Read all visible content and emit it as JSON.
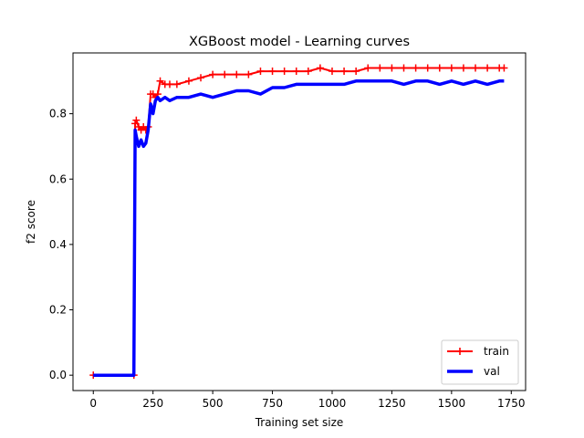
{
  "chart_data": {
    "type": "line",
    "title": "XGBoost model - Learning curves",
    "xlabel": "Training set size",
    "ylabel": "f2 score",
    "xlim": [
      -85,
      1810
    ],
    "ylim": [
      -0.047,
      0.986
    ],
    "xticks": [
      0,
      250,
      500,
      750,
      1000,
      1250,
      1500,
      1750
    ],
    "yticks": [
      0.0,
      0.2,
      0.4,
      0.6,
      0.8
    ],
    "xtick_labels": [
      "0",
      "250",
      "500",
      "750",
      "1000",
      "1250",
      "1500",
      "1750"
    ],
    "ytick_labels": [
      "0.0",
      "0.2",
      "0.4",
      "0.6",
      "0.8"
    ],
    "grid": false,
    "legend_position": "lower-right",
    "series": [
      {
        "name": "train",
        "color": "#ff0000",
        "marker": "+",
        "x": [
          0,
          170,
          175,
          180,
          190,
          200,
          210,
          220,
          230,
          240,
          250,
          260,
          270,
          280,
          300,
          320,
          350,
          400,
          450,
          500,
          550,
          600,
          650,
          700,
          750,
          800,
          850,
          900,
          950,
          1000,
          1050,
          1100,
          1150,
          1200,
          1250,
          1300,
          1350,
          1400,
          1450,
          1500,
          1550,
          1600,
          1650,
          1700,
          1720
        ],
        "y": [
          0.0,
          0.0,
          0.77,
          0.78,
          0.76,
          0.75,
          0.76,
          0.75,
          0.76,
          0.86,
          0.86,
          0.85,
          0.86,
          0.9,
          0.89,
          0.89,
          0.89,
          0.9,
          0.91,
          0.92,
          0.92,
          0.92,
          0.92,
          0.93,
          0.93,
          0.93,
          0.93,
          0.93,
          0.94,
          0.93,
          0.93,
          0.93,
          0.94,
          0.94,
          0.94,
          0.94,
          0.94,
          0.94,
          0.94,
          0.94,
          0.94,
          0.94,
          0.94,
          0.94,
          0.94
        ]
      },
      {
        "name": "val",
        "color": "#0000ff",
        "marker": "",
        "x": [
          0,
          170,
          175,
          180,
          190,
          200,
          210,
          220,
          230,
          240,
          250,
          260,
          270,
          280,
          300,
          320,
          350,
          400,
          450,
          500,
          550,
          600,
          650,
          700,
          750,
          800,
          850,
          900,
          950,
          1000,
          1050,
          1100,
          1150,
          1200,
          1250,
          1300,
          1350,
          1400,
          1450,
          1500,
          1550,
          1600,
          1650,
          1700,
          1720
        ],
        "y": [
          0.0,
          0.0,
          0.75,
          0.73,
          0.7,
          0.72,
          0.7,
          0.71,
          0.75,
          0.83,
          0.8,
          0.84,
          0.85,
          0.84,
          0.85,
          0.84,
          0.85,
          0.85,
          0.86,
          0.85,
          0.86,
          0.87,
          0.87,
          0.86,
          0.88,
          0.88,
          0.89,
          0.89,
          0.89,
          0.89,
          0.89,
          0.9,
          0.9,
          0.9,
          0.9,
          0.89,
          0.9,
          0.9,
          0.89,
          0.9,
          0.89,
          0.9,
          0.89,
          0.9,
          0.9
        ]
      }
    ]
  }
}
